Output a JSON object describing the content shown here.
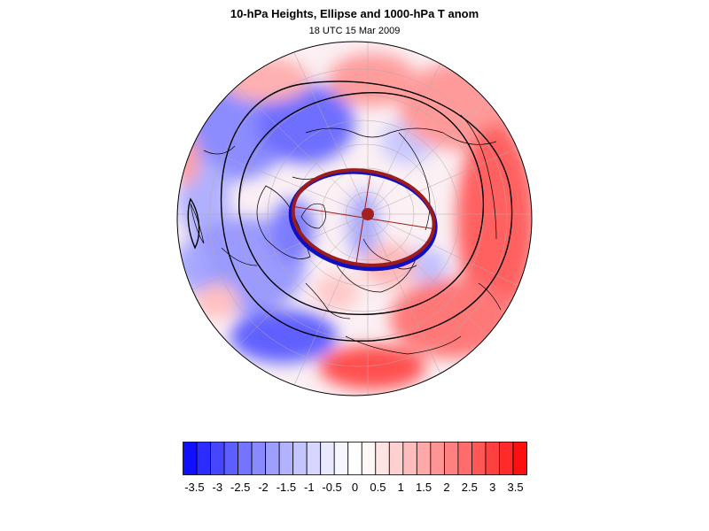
{
  "header": {
    "title": "10-hPa Heights, Ellipse and 1000-hPa T anom",
    "subtitle": "18 UTC 15 Mar 2009"
  },
  "map": {
    "projection": "polar stereographic (north pole)",
    "fill_variable": "1000-hPa temperature anomaly",
    "contour_variable": "10-hPa geopotential height",
    "overlay": "vortex ellipse with center point and axes",
    "colors": {
      "negative": "#0000ff",
      "positive": "#ff0000",
      "ellipse_blue": "#1010c0",
      "ellipse_red": "#9b1c1c"
    }
  },
  "colorbar": {
    "colors": [
      "#1010ff",
      "#2c2cff",
      "#4646ff",
      "#5e5eff",
      "#7474ff",
      "#8a8aff",
      "#9e9eff",
      "#b2b2ff",
      "#c4c4ff",
      "#d6d6ff",
      "#e8e8ff",
      "#f6f6ff",
      "#ffffff",
      "#fff6f6",
      "#ffe4e4",
      "#ffd0d0",
      "#ffbcbc",
      "#ffa8a8",
      "#ff9494",
      "#ff8080",
      "#ff6c6c",
      "#ff5656",
      "#ff4040",
      "#ff2a2a",
      "#ff1010"
    ],
    "tick_labels": [
      "-3.5",
      "-3",
      "-2.5",
      "-2",
      "-1.5",
      "-1",
      "-0.5",
      "0",
      "0.5",
      "1",
      "1.5",
      "2",
      "2.5",
      "3",
      "3.5"
    ],
    "range": [
      -3.75,
      3.75
    ]
  }
}
